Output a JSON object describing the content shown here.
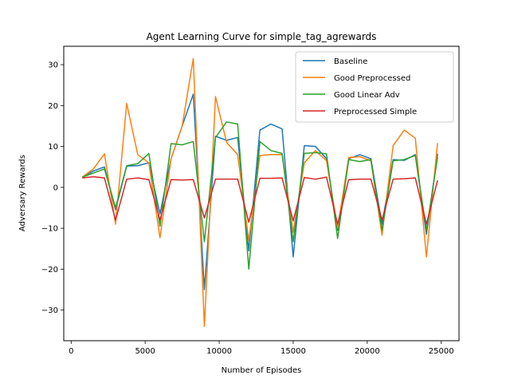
{
  "chart_data": {
    "type": "line",
    "title": "Agent Learning Curve for simple_tag_agrewards",
    "xlabel": "Number of Episodes",
    "ylabel": "Adversary Rewards",
    "xlim": [
      -500,
      26200
    ],
    "ylim": [
      -37.5,
      34.5
    ],
    "xticks": [
      0,
      5000,
      10000,
      15000,
      20000,
      25000
    ],
    "yticks": [
      -30,
      -20,
      -10,
      0,
      10,
      20,
      30
    ],
    "grid": false,
    "legend_position": "top-right",
    "x": [
      750,
      1500,
      2250,
      3000,
      3750,
      4500,
      5250,
      6000,
      6750,
      7500,
      8250,
      9000,
      9750,
      10500,
      11250,
      12000,
      12750,
      13500,
      14250,
      15000,
      15750,
      16500,
      17250,
      18000,
      18750,
      19500,
      20250,
      21000,
      21750,
      22500,
      23250,
      24000,
      24750
    ],
    "series": [
      {
        "name": "Baseline",
        "color": "#1f77b4",
        "values": [
          2.5,
          4.0,
          5.0,
          -5.5,
          5.2,
          5.3,
          6.0,
          -6.5,
          7.0,
          15.0,
          22.8,
          -25.0,
          12.5,
          11.5,
          12.2,
          -15.5,
          14.0,
          15.5,
          14.3,
          -17.0,
          10.2,
          10.0,
          7.0,
          -10.5,
          7.0,
          8.0,
          7.0,
          -9.0,
          6.8,
          6.6,
          8.0,
          -11.5,
          8.2
        ]
      },
      {
        "name": "Good Preprocessed",
        "color": "#ff7f0e",
        "values": [
          2.5,
          4.5,
          8.2,
          -9.0,
          20.5,
          8.0,
          6.0,
          -12.3,
          7.0,
          15.0,
          31.5,
          -34.0,
          22.2,
          11.0,
          8.0,
          -13.0,
          7.8,
          8.0,
          8.0,
          -11.0,
          6.0,
          9.0,
          6.5,
          -10.0,
          7.3,
          7.5,
          6.5,
          -11.7,
          10.2,
          14.0,
          12.0,
          -17.0,
          10.8
        ]
      },
      {
        "name": "Good Linear Adv",
        "color": "#2ca02c",
        "values": [
          2.5,
          3.5,
          4.5,
          -5.0,
          5.3,
          5.8,
          8.3,
          -9.5,
          10.7,
          10.4,
          11.2,
          -13.3,
          12.2,
          16.0,
          15.5,
          -20.0,
          11.2,
          9.0,
          8.3,
          -13.3,
          8.3,
          8.5,
          8.2,
          -12.5,
          6.8,
          6.3,
          6.8,
          -10.5,
          6.5,
          6.8,
          7.8,
          -10.5,
          7.3
        ]
      },
      {
        "name": "Preprocessed Simple",
        "color": "#d62728",
        "values": [
          2.3,
          2.6,
          2.3,
          -8.0,
          2.0,
          2.3,
          1.9,
          -8.0,
          1.9,
          1.8,
          1.9,
          -7.5,
          2.0,
          2.0,
          2.0,
          -8.5,
          2.2,
          2.2,
          2.3,
          -8.2,
          2.4,
          2.0,
          2.5,
          -9.0,
          1.9,
          2.0,
          2.0,
          -8.0,
          2.0,
          2.1,
          2.3,
          -9.0,
          1.7
        ]
      }
    ]
  }
}
